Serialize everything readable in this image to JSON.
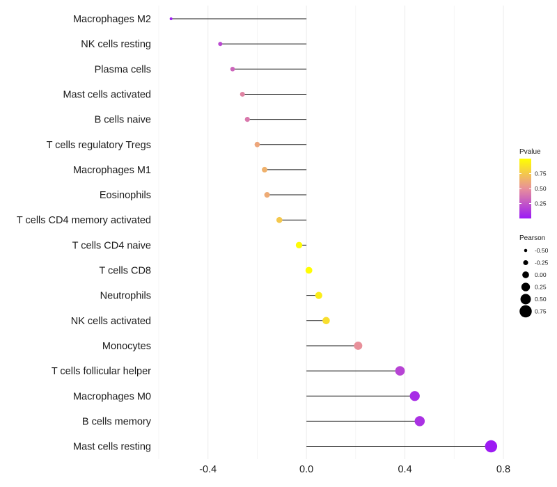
{
  "chart_data": {
    "type": "lollipop",
    "title": "",
    "xlabel": "",
    "ylabel": "",
    "xlim": [
      -0.6,
      0.8
    ],
    "xticks": [
      -0.4,
      0.0,
      0.4,
      0.8
    ],
    "xtick_labels": [
      "-0.4",
      "0.0",
      "0.4",
      "0.8"
    ],
    "minor_gridlines": [
      -0.6,
      -0.2,
      0.2,
      0.6
    ],
    "grid": true,
    "categories": [
      "Macrophages M2",
      "NK cells resting",
      "Plasma cells",
      "Mast cells activated",
      "B cells naive",
      "T cells regulatory  Tregs",
      "Macrophages M1",
      "Eosinophils",
      "T cells CD4 memory activated",
      "T cells CD4 naive",
      "T cells CD8",
      "Neutrophils",
      "NK cells activated",
      "Monocytes",
      "T cells follicular helper",
      "Macrophages M0",
      "B cells memory",
      "Mast cells resting"
    ],
    "pearson": [
      -0.55,
      -0.35,
      -0.3,
      -0.26,
      -0.24,
      -0.2,
      -0.17,
      -0.16,
      -0.11,
      -0.03,
      0.01,
      0.05,
      0.08,
      0.21,
      0.38,
      0.44,
      0.46,
      0.75
    ],
    "pvalue": [
      0.02,
      0.2,
      0.32,
      0.45,
      0.4,
      0.6,
      0.65,
      0.62,
      0.75,
      0.98,
      0.99,
      0.92,
      0.85,
      0.5,
      0.18,
      0.08,
      0.1,
      0.01
    ],
    "legend": {
      "position": "right",
      "color_title": "Pvalue",
      "color_ticks": [
        0.25,
        0.5,
        0.75
      ],
      "color_tick_labels": [
        "0.25",
        "0.50",
        "0.75"
      ],
      "color_range": [
        0.0,
        1.0
      ],
      "color_low": "#9b19f5",
      "color_mid": "#e8909a",
      "color_high": "#ffff00",
      "size_title": "Pearson",
      "size_values": [
        -0.5,
        -0.25,
        0.0,
        0.25,
        0.5,
        0.75
      ],
      "size_labels": [
        "-0.50",
        "-0.25",
        "0.00",
        "0.25",
        "0.50",
        "0.75"
      ]
    }
  }
}
